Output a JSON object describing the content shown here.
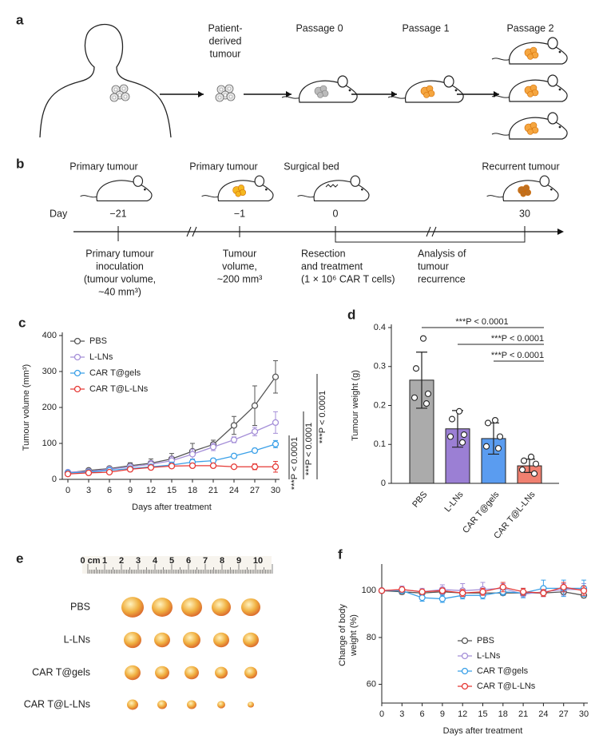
{
  "panel_a": {
    "label": "a",
    "stages": [
      [
        "Patient-",
        "derived",
        "tumour"
      ],
      [
        "Passage 0"
      ],
      [
        "Passage 1"
      ],
      [
        "Passage 2"
      ]
    ]
  },
  "panel_b": {
    "label": "b",
    "day_label": "Day",
    "events": [
      {
        "title": "Primary tumour",
        "day": "−21",
        "note": [
          "Primary tumour",
          "inoculation",
          "(tumour volume,",
          "~40 mm³)"
        ]
      },
      {
        "title": "Primary tumour",
        "day": "−1",
        "note": [
          "Tumour",
          "volume,",
          "~200 mm³"
        ]
      },
      {
        "title": "Surgical bed",
        "day": "0",
        "note": [
          "Resection",
          "and treatment",
          "(1 × 10⁶ CAR T cells)"
        ]
      },
      {
        "title": "Recurrent tumour",
        "day": "30",
        "note": [
          "Analysis of",
          "tumour",
          "recurrence"
        ]
      }
    ]
  },
  "panel_e": {
    "label": "e",
    "ruler_labels": [
      "0 cm",
      "1",
      "2",
      "3",
      "4",
      "5",
      "6",
      "7",
      "8",
      "9",
      "10"
    ],
    "rows": [
      "PBS",
      "L-LNs",
      "CAR T@gels",
      "CAR T@L-LNs"
    ]
  },
  "chart_data": [
    {
      "label": "c",
      "type": "line",
      "x": [
        0,
        3,
        6,
        9,
        12,
        15,
        18,
        21,
        24,
        27,
        30
      ],
      "xlim": [
        0,
        30
      ],
      "xticks": [
        0,
        3,
        6,
        9,
        12,
        15,
        18,
        21,
        24,
        27,
        30
      ],
      "ylim": [
        0,
        400
      ],
      "yticks": [
        0,
        100,
        200,
        300,
        400
      ],
      "xlabel": "Days after treatment",
      "ylabel": "Tumour volume (mm³)",
      "series": [
        {
          "name": "PBS",
          "color": "#555555",
          "values": [
            18,
            25,
            30,
            38,
            45,
            57,
            78,
            97,
            150,
            205,
            285
          ],
          "errors": [
            3,
            4,
            5,
            8,
            12,
            15,
            22,
            12,
            25,
            55,
            45
          ]
        },
        {
          "name": "L-LNs",
          "color": "#a58fd8",
          "values": [
            20,
            22,
            28,
            35,
            42,
            52,
            70,
            90,
            110,
            133,
            158
          ],
          "errors": [
            3,
            4,
            5,
            7,
            10,
            12,
            14,
            10,
            8,
            12,
            30
          ]
        },
        {
          "name": "CAR T@gels",
          "color": "#3aa0e8",
          "values": [
            18,
            20,
            25,
            30,
            35,
            40,
            48,
            52,
            65,
            80,
            98
          ],
          "errors": [
            3,
            3,
            4,
            5,
            6,
            8,
            8,
            6,
            6,
            6,
            10
          ]
        },
        {
          "name": "CAR T@L-LNs",
          "color": "#e53935",
          "values": [
            15,
            18,
            20,
            28,
            33,
            37,
            38,
            38,
            35,
            35,
            35
          ],
          "errors": [
            3,
            3,
            3,
            4,
            5,
            5,
            4,
            4,
            5,
            8,
            15
          ]
        }
      ],
      "annotations": [
        "***P < 0.0001",
        "***P < 0.0001",
        "***P < 0.0001"
      ]
    },
    {
      "label": "d",
      "type": "bar",
      "categories": [
        "PBS",
        "L-LNs",
        "CAR T@gels",
        "CAR T@L-LNs"
      ],
      "colors": [
        "#ababab",
        "#9b7fd4",
        "#5a9cf0",
        "#f08070"
      ],
      "values": [
        0.265,
        0.14,
        0.115,
        0.045
      ],
      "errors": [
        0.072,
        0.047,
        0.04,
        0.017
      ],
      "points": [
        [
          0.372,
          0.295,
          0.23,
          0.22,
          0.205
        ],
        [
          0.185,
          0.165,
          0.125,
          0.12,
          0.105
        ],
        [
          0.162,
          0.155,
          0.12,
          0.095,
          0.09
        ],
        [
          0.068,
          0.058,
          0.05,
          0.035,
          0.025
        ]
      ],
      "ylim": [
        0,
        0.4
      ],
      "yticks": [
        0,
        0.1,
        0.2,
        0.3,
        0.4
      ],
      "ylabel": "Tumour weight (g)",
      "annotations": [
        "***P < 0.0001",
        "***P < 0.0001",
        "***P < 0.0001"
      ]
    },
    {
      "label": "f",
      "type": "line",
      "x": [
        0,
        3,
        6,
        9,
        12,
        15,
        18,
        21,
        24,
        27,
        30
      ],
      "xlim": [
        0,
        30
      ],
      "xticks": [
        0,
        3,
        6,
        9,
        12,
        15,
        18,
        21,
        24,
        27,
        30
      ],
      "ylim": [
        52,
        110
      ],
      "yticks": [
        60,
        80,
        100
      ],
      "xlabel": "Days after treatment",
      "ylabel": [
        "Change of body",
        "weight (%)"
      ],
      "series": [
        {
          "name": "PBS",
          "color": "#555555",
          "values": [
            100,
            99.5,
            99,
            99.5,
            99,
            99,
            99,
            99,
            99,
            99.5,
            98
          ],
          "errors": [
            0.5,
            1,
            1,
            1,
            1.5,
            1.5,
            1,
            1,
            1,
            1,
            1
          ]
        },
        {
          "name": "L-LNs",
          "color": "#a58fd8",
          "values": [
            100,
            100.5,
            99.5,
            100.5,
            100,
            100.5,
            101,
            98.5,
            99.5,
            100.5,
            100.5
          ],
          "errors": [
            0.5,
            1.5,
            1.5,
            2,
            3,
            3,
            2,
            1.5,
            2,
            2.5,
            2.5
          ]
        },
        {
          "name": "CAR T@gels",
          "color": "#3aa0e8",
          "values": [
            100,
            100,
            97,
            96.5,
            98,
            98,
            99.5,
            99,
            101,
            101,
            101
          ],
          "errors": [
            0.5,
            1,
            1.5,
            1.5,
            1.5,
            1.5,
            1.5,
            2,
            3.5,
            3.5,
            3.5
          ]
        },
        {
          "name": "CAR T@L-LNs",
          "color": "#e53935",
          "values": [
            100,
            100.5,
            99.5,
            100,
            99,
            99.5,
            101.5,
            99.5,
            99,
            101.5,
            100
          ],
          "errors": [
            0.5,
            1,
            1,
            1,
            1.5,
            1.5,
            2,
            1.5,
            1.5,
            2,
            2
          ]
        }
      ]
    }
  ]
}
